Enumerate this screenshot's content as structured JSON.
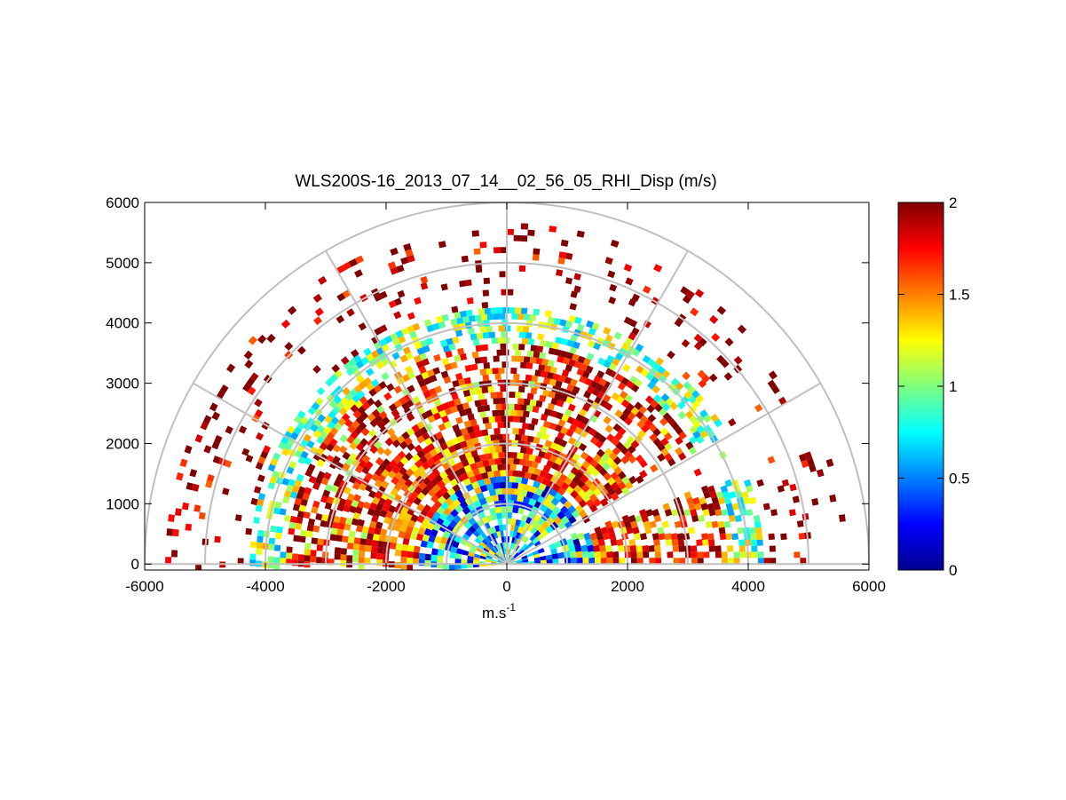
{
  "chart_data": {
    "type": "heatmap",
    "projection": "polar-rhi-half-disc",
    "title": "WLS200S-16_2013_07_14__02_56_05_RHI_Disp (m/s)",
    "xlabel": "m.s",
    "xlabel_superscript": "-1",
    "ylabel": "",
    "xlim": [
      -6000,
      6000
    ],
    "ylim": [
      -100,
      6000
    ],
    "xticks": [
      "-6000",
      "-4000",
      "-2000",
      "0",
      "2000",
      "4000",
      "6000"
    ],
    "yticks": [
      "0",
      "1000",
      "2000",
      "3000",
      "4000",
      "5000",
      "6000"
    ],
    "polar_grid": {
      "range_rings": [
        1000,
        2000,
        3000,
        4000,
        5000,
        6000
      ],
      "spoke_angles_deg": [
        0,
        30,
        60,
        90,
        120,
        150,
        180
      ],
      "grid": true,
      "color": "#c0c0c0"
    },
    "colorbar": {
      "colormap": "jet",
      "range": [
        0,
        2
      ],
      "ticks": [
        "0",
        "0.5",
        "1",
        "1.5",
        "2"
      ],
      "placement": "right"
    },
    "value_bands": [
      {
        "range_from": 0,
        "range_to": 1400,
        "typical_value": 0.75
      },
      {
        "range_from": 1400,
        "range_to": 2200,
        "typical_value": 1.6
      },
      {
        "range_from": 2200,
        "range_to": 3600,
        "typical_value": 1.9
      },
      {
        "range_from": 3600,
        "range_to": 4200,
        "typical_value": 1.0
      },
      {
        "range_from": 4200,
        "range_to": 5600,
        "typical_value": 2.0
      }
    ],
    "gaps": [
      {
        "angle_from_deg": 20,
        "angle_to_deg": 30,
        "note": "sparse data"
      }
    ]
  }
}
